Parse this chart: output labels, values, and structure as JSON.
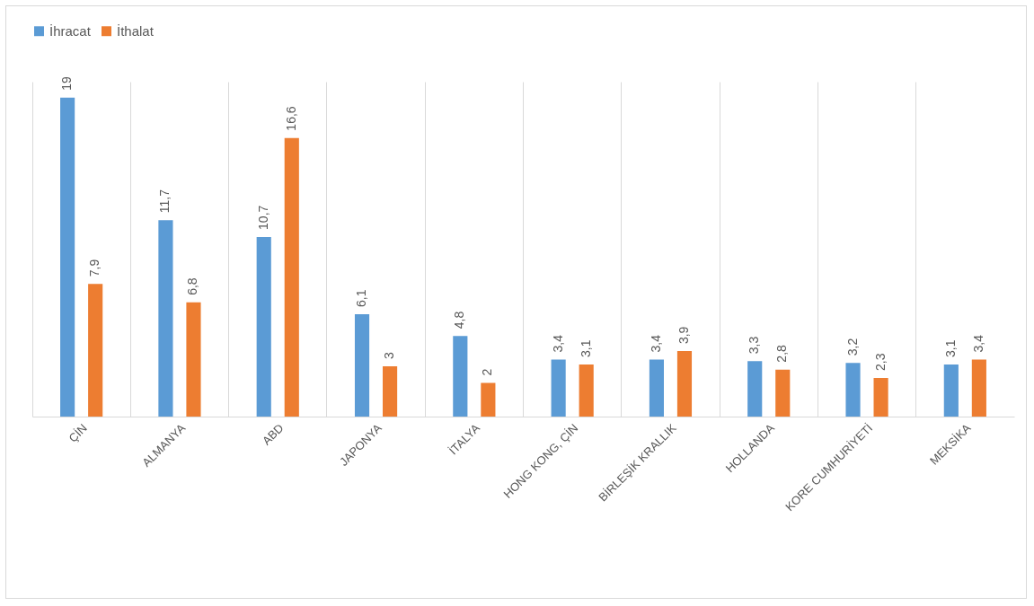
{
  "chart_data": {
    "type": "bar",
    "categories": [
      "ÇİN",
      "ALMANYA",
      "ABD",
      "JAPONYA",
      "İTALYA",
      "HONG KONG, ÇİN",
      "BİRLEŞİK KRALLIK",
      "HOLLANDA",
      "KORE CUMHURİYETİ",
      "MEKSİKA"
    ],
    "series": [
      {
        "name": "İhracat",
        "color": "#5b9bd5",
        "values": [
          19,
          11.7,
          10.7,
          6.1,
          4.8,
          3.4,
          3.4,
          3.3,
          3.2,
          3.1
        ],
        "value_labels": [
          "19",
          "11,7",
          "10,7",
          "6,1",
          "4,8",
          "3,4",
          "3,4",
          "3,3",
          "3,2",
          "3,1"
        ]
      },
      {
        "name": "İthalat",
        "color": "#ed7d31",
        "values": [
          7.9,
          6.8,
          16.6,
          3,
          2,
          3.1,
          3.9,
          2.8,
          2.3,
          3.4
        ],
        "value_labels": [
          "7,9",
          "6,8",
          "16,6",
          "3",
          "2",
          "3,1",
          "3,9",
          "2,8",
          "2,3",
          "3,4"
        ]
      }
    ],
    "grid": "x",
    "legend": "top"
  }
}
